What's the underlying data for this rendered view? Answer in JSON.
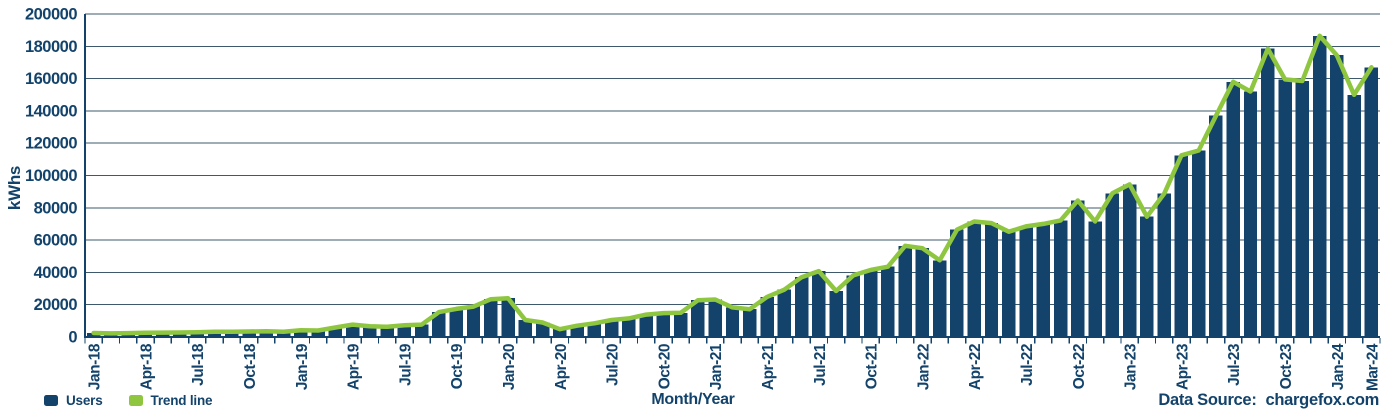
{
  "chart_data": {
    "type": "bar",
    "title": "",
    "ylabel": "kWhs",
    "xlabel": "Month/Year",
    "ylim": [
      0,
      200000
    ],
    "y_ticks": [
      0,
      20000,
      40000,
      60000,
      80000,
      100000,
      120000,
      140000,
      160000,
      180000,
      200000
    ],
    "grid": true,
    "categories": [
      "Jan-18",
      "Feb-18",
      "Mar-18",
      "Apr-18",
      "May-18",
      "Jun-18",
      "Jul-18",
      "Aug-18",
      "Sep-18",
      "Oct-18",
      "Nov-18",
      "Dec-18",
      "Jan-19",
      "Feb-19",
      "Mar-19",
      "Apr-19",
      "May-19",
      "Jun-19",
      "Jul-19",
      "Aug-19",
      "Sep-19",
      "Oct-19",
      "Nov-19",
      "Dec-19",
      "Jan-20",
      "Feb-20",
      "Mar-20",
      "Apr-20",
      "May-20",
      "Jun-20",
      "Jul-20",
      "Aug-20",
      "Sep-20",
      "Oct-20",
      "Nov-20",
      "Dec-20",
      "Jan-21",
      "Feb-21",
      "Mar-21",
      "Apr-21",
      "May-21",
      "Jun-21",
      "Jul-21",
      "Aug-21",
      "Sep-21",
      "Oct-21",
      "Nov-21",
      "Dec-21",
      "Jan-22",
      "Feb-22",
      "Mar-22",
      "Apr-22",
      "May-22",
      "Jun-22",
      "Jul-22",
      "Aug-22",
      "Sep-22",
      "Oct-22",
      "Nov-22",
      "Dec-22",
      "Jan-23",
      "Feb-23",
      "Mar-23",
      "Apr-23",
      "May-23",
      "Jun-23",
      "Jul-23",
      "Aug-23",
      "Sep-23",
      "Oct-23",
      "Nov-23",
      "Dec-23",
      "Jan-24",
      "Feb-24",
      "Mar-24"
    ],
    "labeled_tick_indices": [
      0,
      3,
      6,
      9,
      12,
      15,
      18,
      21,
      24,
      27,
      30,
      33,
      36,
      39,
      42,
      45,
      48,
      51,
      54,
      57,
      60,
      63,
      66,
      69,
      72,
      74
    ],
    "series": [
      {
        "name": "Users",
        "type": "bar",
        "color": "#13436b",
        "values": [
          2500,
          2200,
          2400,
          2600,
          2700,
          2800,
          3000,
          3300,
          3200,
          3400,
          3500,
          3300,
          4200,
          4000,
          5900,
          7700,
          6700,
          6300,
          7300,
          7700,
          15400,
          17400,
          18800,
          23400,
          24000,
          10500,
          9000,
          4800,
          7000,
          8500,
          10500,
          11500,
          13900,
          14800,
          15000,
          22800,
          23200,
          18300,
          17200,
          24800,
          29300,
          37000,
          40800,
          28500,
          38200,
          41500,
          43500,
          56500,
          55000,
          47500,
          66500,
          71500,
          70500,
          65200,
          68500,
          70000,
          72200,
          84500,
          71500,
          89000,
          94500,
          74500,
          88700,
          112500,
          115500,
          137000,
          158000,
          152000,
          178500,
          159500,
          158500,
          186500,
          174500,
          150000,
          167000
        ]
      },
      {
        "name": "Trend line",
        "type": "line",
        "color": "#8ec63f",
        "values": [
          2500,
          2200,
          2400,
          2600,
          2700,
          2800,
          3000,
          3300,
          3200,
          3400,
          3500,
          3300,
          4200,
          4000,
          5900,
          7700,
          6700,
          6300,
          7300,
          7700,
          15400,
          17400,
          18800,
          23400,
          24000,
          10500,
          9000,
          4800,
          7000,
          8500,
          10500,
          11500,
          13900,
          14800,
          15000,
          22800,
          23200,
          18300,
          17200,
          24800,
          29300,
          37000,
          40800,
          28500,
          38200,
          41500,
          43500,
          56500,
          55000,
          47500,
          66500,
          71500,
          70500,
          65200,
          68500,
          70000,
          72200,
          84500,
          71500,
          89000,
          94500,
          74500,
          88700,
          112500,
          115500,
          137000,
          158000,
          152000,
          178500,
          159500,
          158500,
          186500,
          174500,
          150000,
          167000
        ]
      }
    ],
    "legend_position": "bottom-left"
  },
  "legend": {
    "items": [
      {
        "label": "Users",
        "color": "#13436b"
      },
      {
        "label": "Trend line",
        "color": "#8ec63f"
      }
    ]
  },
  "source": {
    "label": "Data Source:",
    "value": "chargefox.com"
  },
  "colors": {
    "bar": "#13436b",
    "trend": "#8ec63f",
    "text": "#13436b",
    "grid": "#3e586c",
    "background": "#ffffff"
  }
}
